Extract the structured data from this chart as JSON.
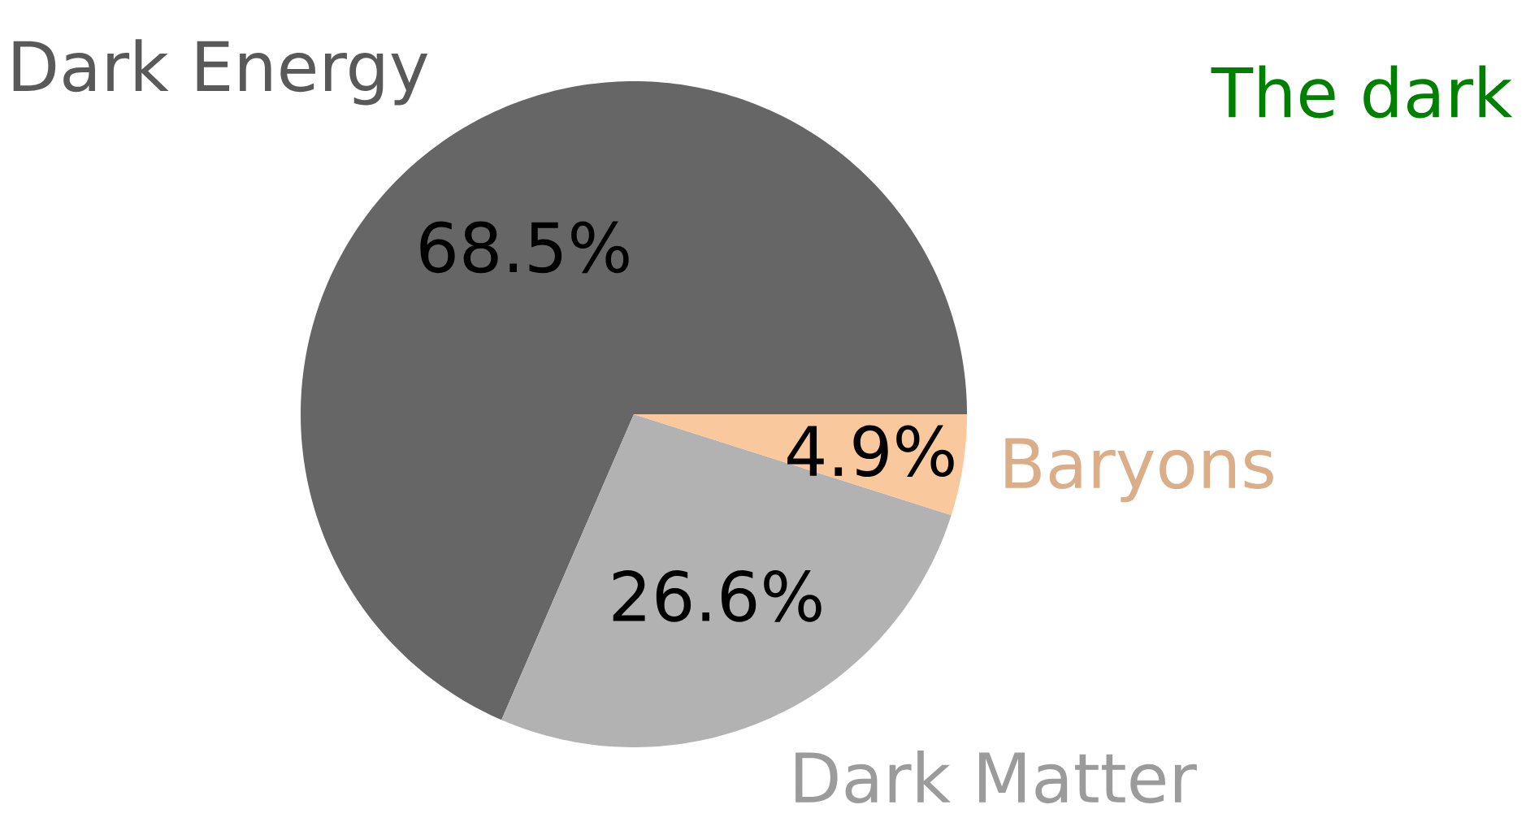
{
  "chart_data": {
    "type": "pie",
    "categories": [
      "Dark Energy",
      "Dark Matter",
      "Baryons"
    ],
    "values": [
      68.5,
      26.6,
      4.9
    ],
    "colors": [
      "#666666",
      "#b2b2b2",
      "#f9c89d"
    ],
    "value_labels": [
      "68.5%",
      "26.6%",
      "4.9%"
    ],
    "annotations": [
      "The dark"
    ]
  }
}
